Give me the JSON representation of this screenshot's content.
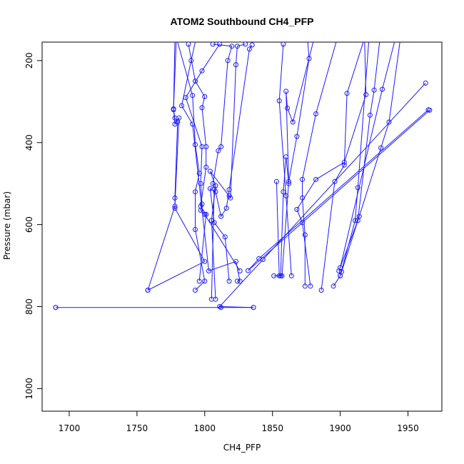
{
  "chart_data": {
    "type": "scatter",
    "title": "ATOM2 Southbound CH4_PFP",
    "xlabel": "CH4_PFP",
    "ylabel": "Pressure (mbar)",
    "xlim": [
      1680,
      1975
    ],
    "ylim": [
      1055,
      155
    ],
    "y_reversed": true,
    "x_ticks": [
      1700,
      1750,
      1800,
      1850,
      1900,
      1950
    ],
    "y_ticks": [
      200,
      400,
      600,
      800,
      1000
    ],
    "grid": false,
    "legend": "none",
    "color": "#1a1aff",
    "series": [
      {
        "values": [
          [
            1690,
            802
          ],
          [
            1836,
            802
          ],
          [
            1812,
            802
          ],
          [
            1690,
            802
          ]
        ]
      },
      {
        "values": [
          [
            1758,
            760
          ],
          [
            1800,
            690
          ],
          [
            1778,
            560
          ],
          [
            1778,
            535
          ],
          [
            1780,
            350
          ],
          [
            1778,
            340
          ],
          [
            1777,
            320
          ],
          [
            1778,
            150
          ]
        ]
      },
      {
        "values": [
          [
            1758,
            760
          ],
          [
            1778,
            555
          ],
          [
            1781,
            340
          ],
          [
            1778,
            355
          ],
          [
            1777,
            318
          ],
          [
            1779,
            150
          ]
        ]
      },
      {
        "values": [
          [
            1836,
            802
          ],
          [
            1811,
            800
          ],
          [
            1843,
            685
          ],
          [
            1963,
            255
          ]
        ]
      },
      {
        "values": [
          [
            1965,
            320
          ],
          [
            1840,
            683
          ],
          [
            1832,
            712
          ],
          [
            1966,
            321
          ]
        ]
      },
      {
        "values": [
          [
            1793,
            760
          ],
          [
            1800,
            738
          ],
          [
            1793,
            612
          ],
          [
            1793,
            520
          ],
          [
            1796,
            475
          ],
          [
            1793,
            405
          ],
          [
            1791,
            285
          ],
          [
            1780,
            155
          ]
        ]
      },
      {
        "values": [
          [
            1796,
            738
          ],
          [
            1801,
            575
          ],
          [
            1797,
            555
          ],
          [
            1801,
            460
          ],
          [
            1801,
            410
          ],
          [
            1798,
            315
          ],
          [
            1800,
            288
          ],
          [
            1793,
            250
          ],
          [
            1788,
            160
          ]
        ]
      },
      {
        "values": [
          [
            1805,
            782
          ],
          [
            1807,
            513
          ],
          [
            1806,
            500
          ],
          [
            1810,
            420
          ],
          [
            1812,
            410
          ],
          [
            1817,
            200
          ],
          [
            1820,
            165
          ],
          [
            1806,
            160
          ]
        ]
      },
      {
        "values": [
          [
            1808,
            782
          ],
          [
            1805,
            590
          ],
          [
            1808,
            505
          ],
          [
            1804,
            470
          ],
          [
            1818,
            530
          ],
          [
            1819,
            535
          ],
          [
            1823,
            210
          ],
          [
            1824,
            165
          ],
          [
            1830,
            160
          ]
        ]
      },
      {
        "values": [
          [
            1818,
            738
          ],
          [
            1815,
            630
          ],
          [
            1807,
            595
          ],
          [
            1804,
            512
          ],
          [
            1808,
            520
          ],
          [
            1812,
            580
          ],
          [
            1816,
            560
          ],
          [
            1818,
            515
          ],
          [
            1833,
            172
          ],
          [
            1835,
            162
          ]
        ]
      },
      {
        "values": [
          [
            1824,
            738
          ],
          [
            1826,
            738
          ],
          [
            1823,
            690
          ],
          [
            1803,
            713
          ],
          [
            1791,
            355
          ],
          [
            1783,
            310
          ],
          [
            1790,
            200
          ],
          [
            1793,
            155
          ]
        ]
      },
      {
        "values": [
          [
            1826,
            713
          ],
          [
            1800,
            575
          ],
          [
            1797,
            565
          ],
          [
            1798,
            550
          ],
          [
            1797,
            500
          ],
          [
            1798,
            410
          ],
          [
            1786,
            290
          ],
          [
            1798,
            225
          ],
          [
            1811,
            160
          ]
        ]
      },
      {
        "values": [
          [
            1851,
            725
          ],
          [
            1856,
            725
          ],
          [
            1858,
            520
          ],
          [
            1860,
            435
          ],
          [
            1862,
            500
          ],
          [
            1860,
            275
          ],
          [
            1861,
            316
          ],
          [
            1865,
            350
          ],
          [
            1880,
            155
          ]
        ]
      },
      {
        "values": [
          [
            1853,
            495
          ],
          [
            1855,
            725
          ],
          [
            1857,
            725
          ],
          [
            1862,
            495
          ],
          [
            1868,
            385
          ],
          [
            1877,
            195
          ],
          [
            1876,
            155
          ]
        ]
      },
      {
        "values": [
          [
            1864,
            725
          ],
          [
            1860,
            530
          ],
          [
            1855,
            298
          ],
          [
            1858,
            160
          ]
        ]
      },
      {
        "values": [
          [
            1874,
            750
          ],
          [
            1874,
            625
          ],
          [
            1872,
            535
          ],
          [
            1872,
            490
          ],
          [
            1882,
            330
          ],
          [
            1897,
            155
          ]
        ]
      },
      {
        "values": [
          [
            1878,
            750
          ],
          [
            1872,
            595
          ],
          [
            1868,
            563
          ],
          [
            1882,
            490
          ],
          [
            1903,
            448
          ],
          [
            1919,
            283
          ],
          [
            1918,
            155
          ]
        ]
      },
      {
        "values": [
          [
            1886,
            760
          ],
          [
            1896,
            495
          ],
          [
            1903,
            455
          ],
          [
            1905,
            280
          ],
          [
            1917,
            155
          ]
        ]
      },
      {
        "values": [
          [
            1895,
            750
          ],
          [
            1900,
            725
          ],
          [
            1911,
            590
          ],
          [
            1913,
            510
          ],
          [
            1921,
            155
          ]
        ]
      },
      {
        "values": [
          [
            1900,
            725
          ],
          [
            1901,
            715
          ],
          [
            1914,
            580
          ],
          [
            1930,
            413
          ],
          [
            1936,
            350
          ],
          [
            1944,
            155
          ]
        ]
      },
      {
        "values": [
          [
            1899,
            713
          ],
          [
            1913,
            590
          ],
          [
            1922,
            333
          ],
          [
            1925,
            272
          ],
          [
            1929,
            155
          ]
        ]
      },
      {
        "values": [
          [
            1900,
            705
          ],
          [
            1931,
            270
          ],
          [
            1940,
            155
          ]
        ]
      }
    ]
  }
}
